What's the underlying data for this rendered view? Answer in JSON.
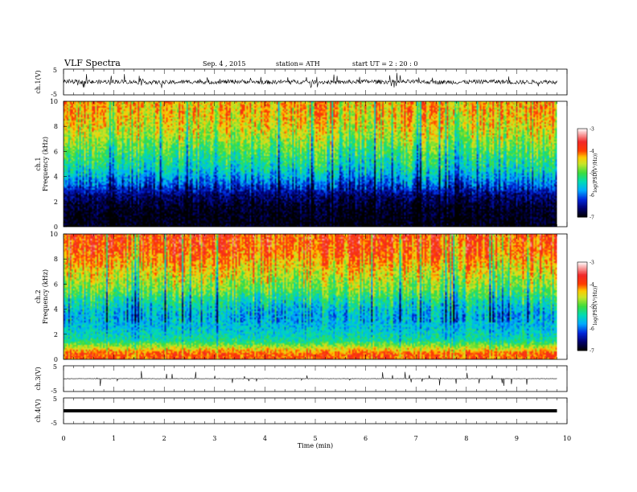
{
  "header": {
    "title": "VLF  Spectra",
    "date": "Sep. 4  , 2015",
    "station": "station= ATH",
    "start": "start  UT  =   2  : 20 : 0"
  },
  "chart_data": [
    {
      "type": "line",
      "panel": "ch1-waveform",
      "ylabel": "ch.1(V)",
      "ylim": [
        -5,
        5
      ],
      "yticks": [
        "5",
        "-5"
      ],
      "x": [
        0,
        0.5,
        1,
        1.5,
        2,
        2.5,
        3,
        3.5,
        4,
        4.5,
        5,
        5.5,
        6,
        6.5,
        7,
        7.5,
        8,
        8.5,
        9,
        9.5,
        9.8
      ],
      "values": [
        0.3,
        -0.1,
        0.2,
        0.0,
        -0.2,
        0.1,
        0.0,
        0.2,
        -0.1,
        0.1,
        0.0,
        -0.1,
        0.2,
        0.0,
        0.1,
        -0.1,
        0.0,
        0.2,
        -0.1,
        0.1,
        0.0
      ],
      "envelope_amplitude": 0.8,
      "color": "#000000"
    },
    {
      "type": "heatmap",
      "panel": "ch1-spectrogram",
      "ylabel": "ch.1\nFrequency (kHz)",
      "ylim": [
        0,
        10
      ],
      "yticks": [
        "0",
        "2",
        "4",
        "6",
        "8",
        "10"
      ],
      "xlim": [
        0,
        9.8
      ],
      "freq_kHz": [
        0.5,
        1.5,
        2.5,
        3.5,
        4.5,
        5.5,
        6.5,
        7.5,
        8.5,
        9.5
      ],
      "logPSD": [
        -7.0,
        -6.9,
        -6.6,
        -6.0,
        -5.5,
        -5.2,
        -4.9,
        -4.6,
        -4.4,
        -4.3
      ],
      "colorbar": {
        "label": "log(PSD(V²/Hz))",
        "range": [
          -7,
          -3
        ],
        "ticks": [
          "-3",
          "-4",
          "-5",
          "-6",
          "-7"
        ]
      }
    },
    {
      "type": "heatmap",
      "panel": "ch2-spectrogram",
      "ylabel": "ch.2\nFrequency (kHz)",
      "ylim": [
        0,
        10
      ],
      "yticks": [
        "0",
        "2",
        "4",
        "6",
        "8",
        "10"
      ],
      "xlim": [
        0,
        9.8
      ],
      "freq_kHz": [
        0.5,
        1.5,
        2.5,
        3.5,
        4.5,
        5.5,
        6.5,
        7.5,
        8.5,
        9.5
      ],
      "logPSD": [
        -4.0,
        -5.3,
        -5.6,
        -5.7,
        -5.4,
        -4.9,
        -4.6,
        -4.3,
        -4.0,
        -3.9
      ],
      "colorbar": {
        "label": "log(PSD(V²/Hz))",
        "range": [
          -7,
          -3
        ],
        "ticks": [
          "-3",
          "-4",
          "-5",
          "-6",
          "-7"
        ]
      }
    },
    {
      "type": "line",
      "panel": "ch3-waveform",
      "ylabel": "ch.3(V)",
      "ylim": [
        -5,
        5
      ],
      "yticks": [
        "5",
        "-5"
      ],
      "x": [
        0,
        9.8
      ],
      "values": [
        0,
        0
      ],
      "color": "#000000"
    },
    {
      "type": "line",
      "panel": "ch4-waveform",
      "ylabel": "ch.4(V)",
      "ylim": [
        -5,
        5
      ],
      "yticks": [
        "5",
        "-5"
      ],
      "x": [
        0,
        9.8
      ],
      "values": [
        0,
        0
      ],
      "color": "#000000"
    }
  ],
  "xaxis": {
    "label": "Time  (min)",
    "ticks": [
      "0",
      "1",
      "2",
      "3",
      "4",
      "5",
      "6",
      "7",
      "8",
      "9",
      "10"
    ],
    "range": [
      0,
      10
    ]
  }
}
